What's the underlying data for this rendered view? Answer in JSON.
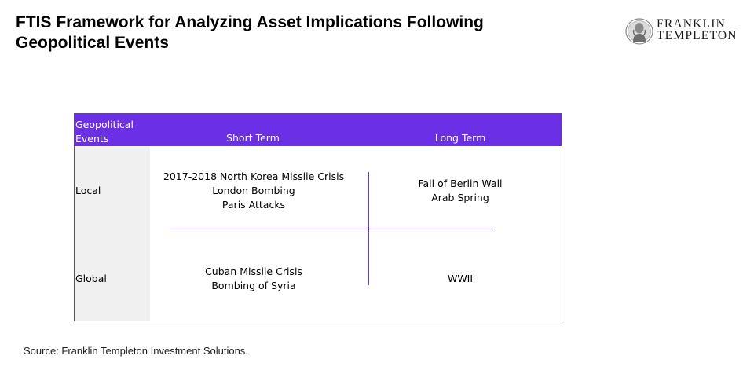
{
  "title": "FTIS Framework for Analyzing Asset Implications Following Geopolitical Events",
  "logo": {
    "line1": "FRANKLIN",
    "line2": "TEMPLETON",
    "icon": "franklin-portrait-seal-icon"
  },
  "table": {
    "header": {
      "corner": "Geopolitical Events",
      "short_term": "Short Term",
      "long_term": "Long Term"
    },
    "rows": [
      {
        "label": "Local",
        "short_term": [
          "2017-2018 North Korea Missile Crisis",
          "London Bombing",
          "Paris Attacks"
        ],
        "long_term": [
          "Fall of Berlin Wall",
          "Arab Spring"
        ]
      },
      {
        "label": "Global",
        "short_term": [
          "Cuban Missile Crisis",
          "Bombing of Syria"
        ],
        "long_term": [
          "WWII"
        ]
      }
    ]
  },
  "source": "Source: Franklin Templeton Investment Solutions.",
  "colors": {
    "accent": "#6b2fe5",
    "left_column": "#f0f0f0",
    "border": "#555555"
  }
}
